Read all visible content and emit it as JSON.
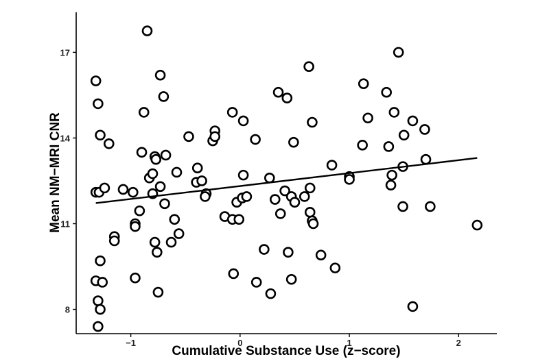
{
  "chart_data": {
    "type": "scatter",
    "xlabel": "Cumulative Substance Use (z−score)",
    "ylabel": "Mean NM−MRI CNR",
    "xlim": [
      -1.5,
      2.35
    ],
    "ylim": [
      7.15,
      18.4
    ],
    "x_ticks": [
      -1,
      0,
      1,
      2
    ],
    "x_tick_labels": [
      "−1",
      "0",
      "1",
      "2"
    ],
    "y_ticks": [
      8,
      11,
      14,
      17
    ],
    "y_tick_labels": [
      "8",
      "11",
      "14",
      "17"
    ],
    "grid": false,
    "legend": "none",
    "marker": "open-circle",
    "points": [
      [
        -1.32,
        16.0
      ],
      [
        -1.3,
        15.2
      ],
      [
        -1.28,
        14.1
      ],
      [
        -1.2,
        13.8
      ],
      [
        -1.32,
        12.1
      ],
      [
        -1.29,
        12.1
      ],
      [
        -1.24,
        12.25
      ],
      [
        -1.15,
        10.55
      ],
      [
        -1.15,
        10.4
      ],
      [
        -1.28,
        9.7
      ],
      [
        -1.32,
        9.0
      ],
      [
        -1.26,
        8.95
      ],
      [
        -1.3,
        8.3
      ],
      [
        -1.28,
        8.0
      ],
      [
        -1.3,
        7.4
      ],
      [
        -1.07,
        12.2
      ],
      [
        -0.98,
        12.1
      ],
      [
        -0.96,
        11.0
      ],
      [
        -0.96,
        10.9
      ],
      [
        -0.92,
        11.45
      ],
      [
        -0.96,
        9.1
      ],
      [
        -0.9,
        13.5
      ],
      [
        -0.88,
        14.9
      ],
      [
        -0.85,
        17.75
      ],
      [
        -0.83,
        12.6
      ],
      [
        -0.8,
        12.75
      ],
      [
        -0.8,
        12.05
      ],
      [
        -0.78,
        13.35
      ],
      [
        -0.77,
        13.25
      ],
      [
        -0.78,
        10.35
      ],
      [
        -0.76,
        10.0
      ],
      [
        -0.75,
        8.6
      ],
      [
        -0.73,
        16.2
      ],
      [
        -0.73,
        12.3
      ],
      [
        -0.7,
        15.45
      ],
      [
        -0.68,
        13.4
      ],
      [
        -0.69,
        11.7
      ],
      [
        -0.63,
        10.35
      ],
      [
        -0.6,
        11.15
      ],
      [
        -0.58,
        12.8
      ],
      [
        -0.56,
        10.65
      ],
      [
        -0.47,
        14.05
      ],
      [
        -0.39,
        12.95
      ],
      [
        -0.4,
        12.45
      ],
      [
        -0.35,
        12.5
      ],
      [
        -0.31,
        12.05
      ],
      [
        -0.32,
        11.95
      ],
      [
        -0.25,
        13.9
      ],
      [
        -0.23,
        14.25
      ],
      [
        -0.23,
        14.05
      ],
      [
        -0.14,
        11.25
      ],
      [
        -0.07,
        14.9
      ],
      [
        -0.07,
        11.15
      ],
      [
        -0.06,
        9.25
      ],
      [
        -0.03,
        11.75
      ],
      [
        -0.01,
        11.15
      ],
      [
        0.02,
        11.9
      ],
      [
        0.03,
        14.6
      ],
      [
        0.03,
        12.7
      ],
      [
        0.06,
        11.95
      ],
      [
        0.14,
        13.95
      ],
      [
        0.15,
        8.95
      ],
      [
        0.22,
        10.1
      ],
      [
        0.27,
        12.6
      ],
      [
        0.28,
        8.55
      ],
      [
        0.32,
        11.85
      ],
      [
        0.35,
        15.6
      ],
      [
        0.37,
        11.35
      ],
      [
        0.41,
        12.15
      ],
      [
        0.43,
        15.4
      ],
      [
        0.44,
        10.0
      ],
      [
        0.47,
        11.95
      ],
      [
        0.47,
        9.05
      ],
      [
        0.49,
        13.85
      ],
      [
        0.5,
        11.75
      ],
      [
        0.59,
        11.95
      ],
      [
        0.63,
        16.5
      ],
      [
        0.64,
        12.25
      ],
      [
        0.64,
        11.4
      ],
      [
        0.66,
        11.1
      ],
      [
        0.66,
        14.55
      ],
      [
        0.67,
        11.0
      ],
      [
        0.74,
        9.9
      ],
      [
        0.84,
        13.05
      ],
      [
        0.87,
        9.45
      ],
      [
        1.0,
        12.65
      ],
      [
        1.0,
        12.55
      ],
      [
        1.12,
        13.75
      ],
      [
        1.13,
        15.9
      ],
      [
        1.17,
        14.7
      ],
      [
        1.34,
        15.6
      ],
      [
        1.36,
        13.7
      ],
      [
        1.38,
        12.35
      ],
      [
        1.39,
        12.7
      ],
      [
        1.41,
        14.9
      ],
      [
        1.45,
        17.0
      ],
      [
        1.49,
        11.6
      ],
      [
        1.49,
        13.0
      ],
      [
        1.5,
        14.1
      ],
      [
        1.58,
        14.6
      ],
      [
        1.58,
        8.1
      ],
      [
        1.69,
        14.3
      ],
      [
        1.7,
        13.25
      ],
      [
        1.74,
        11.6
      ],
      [
        2.17,
        10.95
      ]
    ],
    "regression_line": {
      "x": [
        -1.32,
        2.17
      ],
      "y": [
        11.72,
        13.3
      ]
    }
  }
}
